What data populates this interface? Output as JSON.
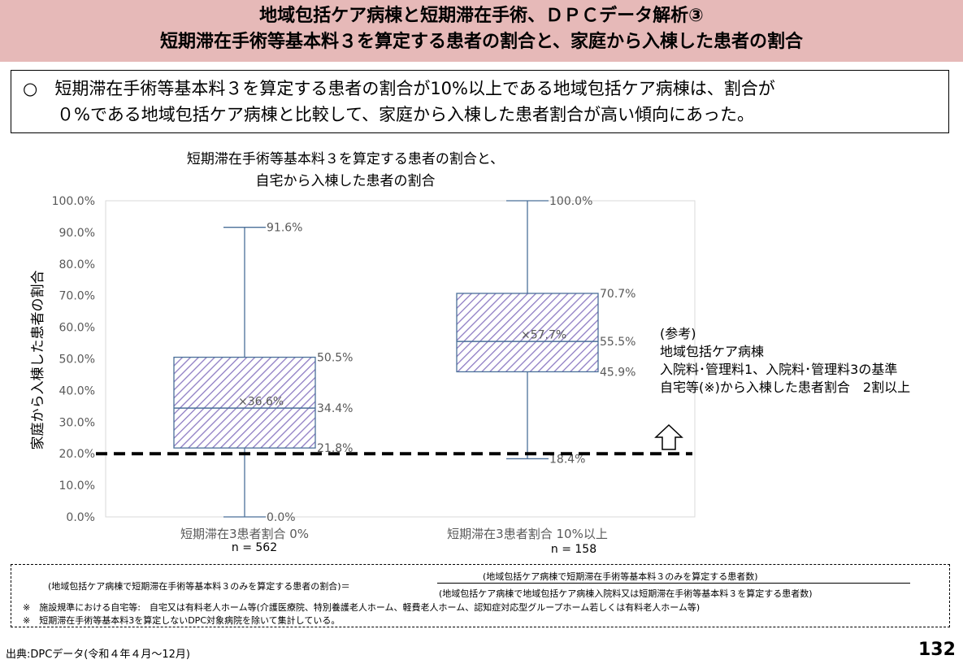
{
  "header": {
    "line1": "地域包括ケア病棟と短期滞在手術、ＤＰＣデータ解析③",
    "line2": "短期滞在手術等基本料３を算定する患者の割合と、家庭から入棟した患者の割合"
  },
  "summary": {
    "line1": "○　短期滞在手術等基本料３を算定する患者の割合が10%以上である地域包括ケア病棟は、割合が",
    "line2": "０%である地域包括ケア病棟と比較して、家庭から入棟した患者割合が高い傾向にあった。"
  },
  "chart_data": {
    "type": "box",
    "title": [
      "短期滞在手術等基本料３を算定する患者の割合と、",
      "自宅から入棟した患者の割合"
    ],
    "ylabel": "家庭から入棟した患者の割合",
    "ylim": [
      0,
      100
    ],
    "y_ticks": [
      0,
      10,
      20,
      30,
      40,
      50,
      60,
      70,
      80,
      90,
      100
    ],
    "y_tick_labels": [
      "0.0%",
      "10.0%",
      "20.0%",
      "30.0%",
      "40.0%",
      "50.0%",
      "60.0%",
      "70.0%",
      "80.0%",
      "90.0%",
      "100.0%"
    ],
    "reference_line": 20,
    "categories": [
      "短期滞在3患者割合 0%",
      "短期滞在3患者割合 10%以上"
    ],
    "n_labels": [
      "n = 562",
      "n = 158"
    ],
    "boxes": [
      {
        "min": 0.0,
        "q1": 21.8,
        "median": 34.4,
        "q3": 50.5,
        "max": 91.6,
        "mean": 36.6,
        "labels": {
          "min": "0.0%",
          "q1": "21.8%",
          "median": "34.4%",
          "q3": "50.5%",
          "max": "91.6%",
          "mean": "×36.6%"
        }
      },
      {
        "min": 18.4,
        "q1": 45.9,
        "median": 55.5,
        "q3": 70.7,
        "max": 100.0,
        "mean": 57.7,
        "labels": {
          "min": "18.4%",
          "q1": "45.9%",
          "median": "55.5%",
          "q3": "70.7%",
          "max": "100.0%",
          "mean": "×57.7%"
        }
      }
    ],
    "colors": {
      "box_stroke": "#4a6f99",
      "hatch": "#8e7cc3",
      "axis_text": "#595959",
      "grid_border": "#d9d9d9"
    }
  },
  "reference": {
    "line1": "(参考)",
    "line2": "地域包括ケア病棟",
    "line3": "入院料･管理料1、入院料･管理料3の基準",
    "line4": "自宅等(※)から入棟した患者割合　2割以上"
  },
  "notes": {
    "formula_lhs": "(地域包括ケア病棟で短期滞在手術等基本料３のみを算定する患者の割合)＝",
    "formula_numerator": "(地域包括ケア病棟で短期滞在手術等基本料３のみを算定する患者数)",
    "formula_denominator": "(地域包括ケア病棟で地域包括ケア病棟入院料又は短期滞在手術等基本料３を算定する患者数)",
    "note1": "※　施設規準における自宅等:　自宅又は有料老人ホーム等(介護医療院、特別養護老人ホーム、軽費老人ホーム、認知症対応型グループホーム若しくは有料老人ホーム等)",
    "note2": "※　短期滞在手術等基本料3を算定しないDPC対象病院を除いて集計している。"
  },
  "source": "出典:DPCデータ(令和４年４月～12月)",
  "page_number": "132"
}
